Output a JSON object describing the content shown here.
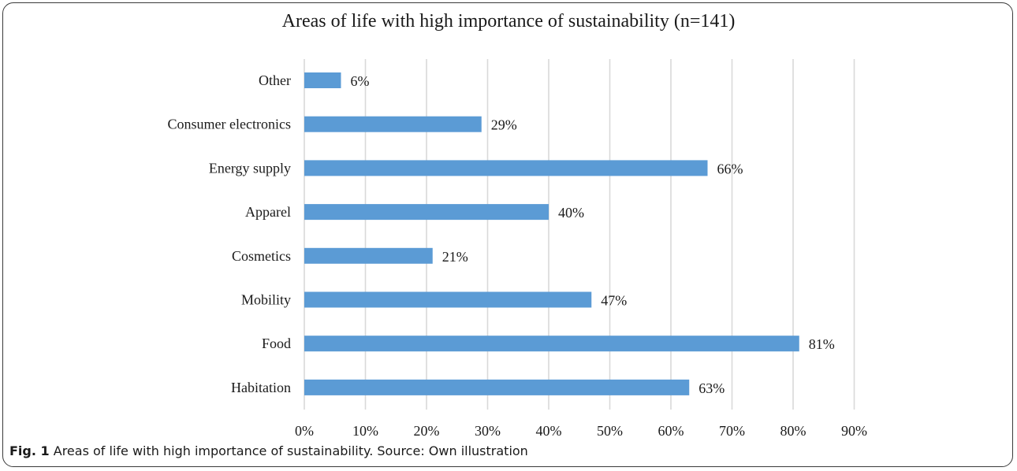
{
  "chart_data": {
    "type": "bar",
    "orientation": "horizontal",
    "title": "Areas of life with high importance of sustainability (n=141)",
    "categories": [
      "Other",
      "Consumer electronics",
      "Energy supply",
      "Apparel",
      "Cosmetics",
      "Mobility",
      "Food",
      "Habitation"
    ],
    "values": [
      6,
      29,
      66,
      40,
      21,
      47,
      81,
      63
    ],
    "value_labels": [
      "6%",
      "29%",
      "66%",
      "40%",
      "21%",
      "47%",
      "81%",
      "63%"
    ],
    "xlim": [
      0,
      90
    ],
    "xticks": [
      "0%",
      "10%",
      "20%",
      "30%",
      "40%",
      "50%",
      "60%",
      "70%",
      "80%",
      "90%"
    ],
    "grid": true,
    "bar_color": "#5b9bd5"
  },
  "caption": {
    "label": "Fig. 1",
    "text": "Areas of life with high importance of sustainability. Source: Own illustration"
  }
}
